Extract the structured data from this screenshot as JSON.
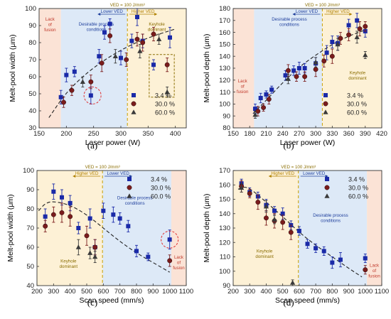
{
  "legend": [
    {
      "label": "3.4 %",
      "color": "#1a2aa8",
      "marker": "square"
    },
    {
      "label": "30.0 %",
      "color": "#7a1c1c",
      "marker": "circle"
    },
    {
      "label": "60.0 %",
      "color": "#3a3a3a",
      "marker": "triangle"
    }
  ],
  "colors": {
    "lack": "#fbe3d6",
    "desirable": "#dde9f7",
    "keyhole": "#fdf1d6",
    "fit": "#222222",
    "ved_line": "#c9a000",
    "highlight": "#e03030"
  },
  "chart_data": [
    {
      "type": "scatter",
      "caption": "(a)",
      "xlabel": "Laser power (W)",
      "ylabel": "Melt-pool width (μm)",
      "xlim": [
        150,
        420
      ],
      "ylim": [
        30,
        100
      ],
      "xticks": [
        150,
        200,
        250,
        300,
        350,
        400
      ],
      "yticks": [
        30,
        40,
        50,
        60,
        70,
        80,
        90,
        100
      ],
      "ved_label": "VED = 100 J/mm³",
      "ved_x": 312,
      "arrow_left": "Lower VED",
      "arrow_right": "Higher VED",
      "zones": [
        {
          "from": 150,
          "to": 190,
          "kind": "lack",
          "label": [
            "Lack",
            "of",
            "fusion"
          ],
          "color": "#c0392b",
          "lx": 170,
          "ly": 93
        },
        {
          "from": 190,
          "to": 312,
          "kind": "desirable",
          "label": [
            "Desirable process",
            "conditions"
          ],
          "color": "#1f3f9c",
          "lx": 255,
          "ly": 90
        },
        {
          "from": 312,
          "to": 420,
          "kind": "keyhole",
          "label": [
            "Keyhole",
            "dominant"
          ],
          "color": "#8a6d00",
          "lx": 366,
          "ly": 90
        }
      ],
      "fit": [
        [
          168,
          36
        ],
        [
          200,
          51
        ],
        [
          240,
          63
        ],
        [
          280,
          72
        ],
        [
          320,
          79
        ],
        [
          360,
          84
        ],
        [
          400,
          88
        ]
      ],
      "series": [
        {
          "name": "3.4 %",
          "points": [
            [
              190,
              48,
              4
            ],
            [
              200,
              61,
              4
            ],
            [
              215,
              63,
              3
            ],
            [
              245,
              49,
              5
            ],
            [
              260,
              72,
              4
            ],
            [
              270,
              86,
              4
            ],
            [
              280,
              91,
              3
            ],
            [
              300,
              71,
              4
            ],
            [
              320,
              81,
              4
            ],
            [
              330,
              95,
              5
            ],
            [
              340,
              81,
              4
            ],
            [
              360,
              67,
              3
            ],
            [
              390,
              83,
              6
            ]
          ]
        },
        {
          "name": "30.0 %",
          "points": [
            [
              195,
              45,
              3
            ],
            [
              210,
              52,
              3
            ],
            [
              245,
              57,
              4
            ],
            [
              265,
              68,
              5
            ],
            [
              280,
              84,
              4
            ],
            [
              310,
              70,
              4
            ],
            [
              330,
              82,
              4
            ],
            [
              340,
              80,
              5
            ],
            [
              360,
              85,
              4
            ],
            [
              385,
              67,
              4
            ]
          ]
        },
        {
          "name": "60.0 %",
          "points": [
            [
              230,
              57,
              3
            ],
            [
              290,
              72,
              4
            ],
            [
              335,
              75,
              4
            ],
            [
              370,
              82,
              3
            ],
            [
              385,
              51,
              3
            ]
          ]
        }
      ],
      "highlight": {
        "shape": "circle",
        "x": 248,
        "y": 49
      },
      "highlight_box": {
        "x1": 352,
        "x2": 398,
        "y1": 48,
        "y2": 73
      }
    },
    {
      "type": "scatter",
      "caption": "(b)",
      "xlabel": "Laser power (W)",
      "ylabel": "Melt-pool depth (μm)",
      "xlim": [
        150,
        420
      ],
      "ylim": [
        80,
        180
      ],
      "xticks": [
        150,
        180,
        210,
        240,
        270,
        300,
        330,
        360,
        390,
        420
      ],
      "yticks": [
        80,
        90,
        100,
        110,
        120,
        130,
        140,
        150,
        160,
        170,
        180
      ],
      "ved_label": "VED = 100 J/mm³",
      "ved_x": 312,
      "arrow_left": "Lower VED",
      "arrow_right": "Higher VED",
      "zones": [
        {
          "from": 150,
          "to": 188,
          "kind": "lack",
          "label": [
            "Lack",
            "of",
            "fusion"
          ],
          "color": "#c0392b",
          "lx": 167,
          "ly": 118
        },
        {
          "from": 188,
          "to": 312,
          "kind": "desirable",
          "label": [
            "Desirable process",
            "conditions"
          ],
          "color": "#1f3f9c",
          "lx": 252,
          "ly": 170
        },
        {
          "from": 312,
          "to": 420,
          "kind": "keyhole",
          "label": [
            "Keyhole",
            "dominant"
          ],
          "color": "#8a6d00",
          "lx": 376,
          "ly": 125
        }
      ],
      "fit": [
        [
          186,
          92
        ],
        [
          210,
          103
        ],
        [
          240,
          118
        ],
        [
          270,
          131
        ],
        [
          300,
          141
        ],
        [
          330,
          150
        ],
        [
          360,
          157
        ],
        [
          390,
          162
        ]
      ],
      "series": [
        {
          "name": "3.4 %",
          "points": [
            [
              190,
              96,
              4
            ],
            [
              200,
              105,
              4
            ],
            [
              210,
              108,
              3
            ],
            [
              220,
              112,
              3
            ],
            [
              245,
              124,
              4
            ],
            [
              260,
              128,
              4
            ],
            [
              270,
              130,
              5
            ],
            [
              280,
              130,
              4
            ],
            [
              300,
              134,
              5
            ],
            [
              320,
              143,
              6
            ],
            [
              330,
              152,
              5
            ],
            [
              340,
              151,
              6
            ],
            [
              360,
              166,
              5
            ],
            [
              375,
              170,
              6
            ],
            [
              390,
              161,
              5
            ]
          ]
        },
        {
          "name": "30.0 %",
          "points": [
            [
              195,
              94,
              4
            ],
            [
              205,
              97,
              3
            ],
            [
              215,
              104,
              4
            ],
            [
              250,
              128,
              5
            ],
            [
              265,
              123,
              4
            ],
            [
              280,
              123,
              4
            ],
            [
              300,
              129,
              6
            ],
            [
              315,
              136,
              5
            ],
            [
              330,
              140,
              6
            ],
            [
              345,
              155,
              5
            ],
            [
              360,
              158,
              5
            ],
            [
              380,
              163,
              6
            ],
            [
              390,
              165,
              4
            ]
          ]
        },
        {
          "name": "60.0 %",
          "points": [
            [
              190,
              91,
              3
            ],
            [
              250,
              121,
              4
            ],
            [
              300,
              135,
              4
            ],
            [
              340,
              150,
              5
            ],
            [
              375,
              156,
              5
            ],
            [
              390,
              141,
              3
            ]
          ]
        }
      ]
    },
    {
      "type": "scatter",
      "caption": "(c)",
      "xlabel": "Scan speed (mm/s)",
      "ylabel": "Melt-pool width (μm)",
      "xlim": [
        200,
        1100
      ],
      "ylim": [
        40,
        100
      ],
      "xticks": [
        200,
        300,
        400,
        500,
        600,
        700,
        800,
        900,
        1000,
        1100
      ],
      "yticks": [
        40,
        50,
        60,
        70,
        80,
        90,
        100
      ],
      "ved_label": "VED = 100 J/mm³",
      "ved_x": 595,
      "arrow_left": "Higher VED",
      "arrow_right": "Lower VED",
      "zones": [
        {
          "from": 200,
          "to": 595,
          "kind": "keyhole",
          "label": [
            "Keyhole",
            "dominant"
          ],
          "color": "#8a6d00",
          "lx": 390,
          "ly": 52
        },
        {
          "from": 595,
          "to": 1010,
          "kind": "desirable",
          "label": [
            "Desirable process",
            "conditions"
          ],
          "color": "#1f3f9c",
          "lx": 790,
          "ly": 85
        },
        {
          "from": 1010,
          "to": 1100,
          "kind": "lack",
          "label": [
            "Lack",
            "of",
            "fusion"
          ],
          "color": "#c0392b",
          "lx": 1055,
          "ly": 54
        }
      ],
      "fit": [
        [
          210,
          79
        ],
        [
          250,
          83
        ],
        [
          300,
          84
        ],
        [
          400,
          82
        ],
        [
          500,
          77
        ],
        [
          600,
          70
        ],
        [
          700,
          63
        ],
        [
          800,
          57
        ],
        [
          900,
          52
        ],
        [
          1000,
          47
        ]
      ],
      "series": [
        {
          "name": "3.4 %",
          "points": [
            [
              250,
              76,
              4
            ],
            [
              300,
              89,
              4
            ],
            [
              350,
              86,
              4
            ],
            [
              400,
              83,
              4
            ],
            [
              450,
              70,
              3
            ],
            [
              520,
              75,
              5
            ],
            [
              550,
              60,
              4
            ],
            [
              600,
              79,
              4
            ],
            [
              660,
              77,
              4
            ],
            [
              700,
              75,
              3
            ],
            [
              750,
              71,
              3
            ],
            [
              800,
              58,
              3
            ],
            [
              870,
              55,
              2
            ],
            [
              1000,
              64,
              5
            ]
          ]
        },
        {
          "name": "30.0 %",
          "points": [
            [
              250,
              71,
              3
            ],
            [
              300,
              77,
              4
            ],
            [
              350,
              78,
              5
            ],
            [
              400,
              76,
              5
            ],
            [
              500,
              66,
              5
            ],
            [
              550,
              60,
              4
            ],
            [
              1000,
              53,
              3
            ]
          ]
        },
        {
          "name": "60.0 %",
          "points": [
            [
              450,
              60,
              4
            ],
            [
              520,
              57,
              3
            ],
            [
              550,
              55,
              3
            ]
          ]
        }
      ],
      "highlight": {
        "shape": "circle",
        "x": 1000,
        "y": 64
      }
    },
    {
      "type": "scatter",
      "caption": "(d)",
      "xlabel": "Scan speed (mm/s)",
      "ylabel": "Melt-pool depth (μm)",
      "xlim": [
        200,
        1100
      ],
      "ylim": [
        90,
        170
      ],
      "xticks": [
        200,
        300,
        400,
        500,
        600,
        700,
        800,
        900,
        1000,
        1100
      ],
      "yticks": [
        90,
        100,
        110,
        120,
        130,
        140,
        150,
        160,
        170
      ],
      "ved_label": "VED = 100 J/mm³",
      "ved_x": 595,
      "arrow_left": "Higher VED",
      "arrow_right": "Lower VED",
      "zones": [
        {
          "from": 200,
          "to": 595,
          "kind": "keyhole",
          "label": [
            "Keyhole",
            "dominant"
          ],
          "color": "#8a6d00",
          "lx": 390,
          "ly": 113
        },
        {
          "from": 595,
          "to": 1010,
          "kind": "desirable",
          "label": [
            "Desirable process",
            "conditions"
          ],
          "color": "#1f3f9c",
          "lx": 790,
          "ly": 138
        },
        {
          "from": 1010,
          "to": 1100,
          "kind": "lack",
          "label": [
            "Lack",
            "of",
            "fusion"
          ],
          "color": "#c0392b",
          "lx": 1055,
          "ly": 103
        }
      ],
      "fit": [
        [
          230,
          157
        ],
        [
          270,
          159
        ],
        [
          320,
          156
        ],
        [
          400,
          148
        ],
        [
          500,
          138
        ],
        [
          600,
          127
        ],
        [
          700,
          118
        ],
        [
          800,
          110
        ],
        [
          900,
          102
        ],
        [
          980,
          96
        ]
      ],
      "series": [
        {
          "name": "3.4 %",
          "points": [
            [
              250,
              161,
              3
            ],
            [
              300,
              155,
              3
            ],
            [
              350,
              152,
              3
            ],
            [
              400,
              146,
              4
            ],
            [
              450,
              142,
              3
            ],
            [
              500,
              140,
              4
            ],
            [
              550,
              132,
              3
            ],
            [
              600,
              128,
              3
            ],
            [
              650,
              119,
              3
            ],
            [
              700,
              116,
              3
            ],
            [
              750,
              114,
              3
            ],
            [
              800,
              106,
              4
            ],
            [
              850,
              108,
              5
            ],
            [
              1000,
              109,
              3
            ]
          ]
        },
        {
          "name": "30.0 %",
          "points": [
            [
              250,
              159,
              4
            ],
            [
              300,
              154,
              3
            ],
            [
              350,
              148,
              5
            ],
            [
              400,
              137,
              5
            ],
            [
              450,
              135,
              5
            ],
            [
              500,
              134,
              5
            ],
            [
              550,
              127,
              5
            ],
            [
              1000,
              101,
              3
            ]
          ]
        },
        {
          "name": "60.0 %",
          "points": [
            [
              250,
              158,
              3
            ],
            [
              400,
              145,
              4
            ],
            [
              450,
              136,
              3
            ],
            [
              560,
              92,
              2
            ]
          ]
        }
      ]
    }
  ]
}
